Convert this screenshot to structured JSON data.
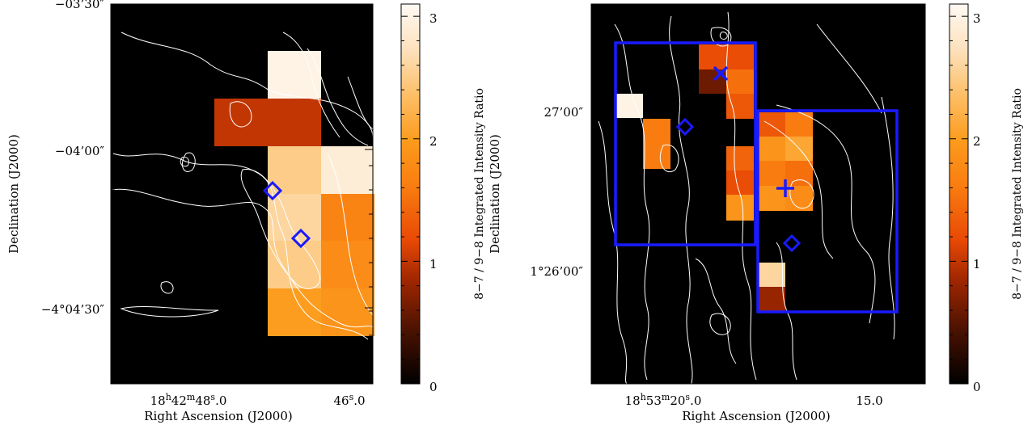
{
  "chart_data": [
    {
      "type": "heatmap",
      "panel": "left",
      "xlabel": "Right Ascension (J2000)",
      "ylabel": "Declination (J2000)",
      "x_ticks": [
        {
          "ra_sec": 48.0,
          "label_h": "18",
          "label_hsup": "h",
          "label_m": "42",
          "label_msup": "m",
          "label_s": "48",
          "label_ssup": "s",
          "label_frac": ".0"
        },
        {
          "ra_sec": 46.0,
          "label_s": "46",
          "label_ssup": "s",
          "label_frac": ".0"
        }
      ],
      "y_ticks": [
        {
          "dec": "-03:30:00",
          "label": "−03’30″"
        },
        {
          "dec": "-04:00:00",
          "label": "−04’00″"
        },
        {
          "dec": "-04:04:30",
          "label": "−4°04’30″"
        }
      ],
      "cells": [
        {
          "col": 1,
          "row": 0,
          "value": 3.0
        },
        {
          "col": 0,
          "row": 1,
          "value": 1.0
        },
        {
          "col": 1,
          "row": 1,
          "value": 1.0
        },
        {
          "col": 1,
          "row": 2,
          "value": 2.5
        },
        {
          "col": 2,
          "row": 2,
          "value": 2.9
        },
        {
          "col": 1,
          "row": 3,
          "value": 2.6
        },
        {
          "col": 2,
          "row": 3,
          "value": 1.7
        },
        {
          "col": 1,
          "row": 4,
          "value": 2.5
        },
        {
          "col": 2,
          "row": 4,
          "value": 1.8
        },
        {
          "col": 1,
          "row": 5,
          "value": 2.0
        },
        {
          "col": 2,
          "row": 5,
          "value": 1.9
        }
      ],
      "markers": [
        {
          "shape": "diamond",
          "label": ""
        },
        {
          "shape": "diamond",
          "label": ""
        }
      ],
      "colorbar": {
        "min": 0,
        "max": 3.1,
        "ticks": [
          "0",
          "1",
          "2",
          "3"
        ],
        "label": "8−7 / 9−8 Integrated Intensity Ratio"
      }
    },
    {
      "type": "heatmap",
      "panel": "right",
      "xlabel": "Right Ascension (J2000)",
      "ylabel": "Declination (J2000)",
      "x_ticks": [
        {
          "ra_sec": 20.0,
          "label_h": "18",
          "label_hsup": "h",
          "label_m": "53",
          "label_msup": "m",
          "label_s": "20",
          "label_ssup": "s",
          "label_frac": ".0"
        },
        {
          "ra_sec": 15.0,
          "label_s": "15",
          "label_ssup": "",
          "label_frac": ".0"
        }
      ],
      "y_ticks": [
        {
          "dec": "+01:27:00",
          "label": "27’00″"
        },
        {
          "dec": "+01:26:00",
          "label": "1°26’00″"
        }
      ],
      "cells": [
        {
          "group": "A",
          "value": 3.0
        },
        {
          "group": "B",
          "value": 1.6
        },
        {
          "group": "C",
          "value": 0.6
        },
        {
          "group": "D",
          "value": 1.5
        },
        {
          "group": "E",
          "value": 1.4
        },
        {
          "group": "F",
          "value": 1.8
        },
        {
          "group": "G",
          "value": 2.6
        },
        {
          "group": "H",
          "value": 0.8
        }
      ],
      "regions": 2,
      "markers": [
        {
          "shape": "x"
        },
        {
          "shape": "diamond"
        },
        {
          "shape": "plus"
        },
        {
          "shape": "diamond"
        }
      ],
      "colorbar": {
        "min": 0,
        "max": 3.1,
        "ticks": [
          "0",
          "1",
          "2",
          "3"
        ],
        "label": "8−7 / 9−8 Integrated Intensity Ratio"
      }
    }
  ]
}
